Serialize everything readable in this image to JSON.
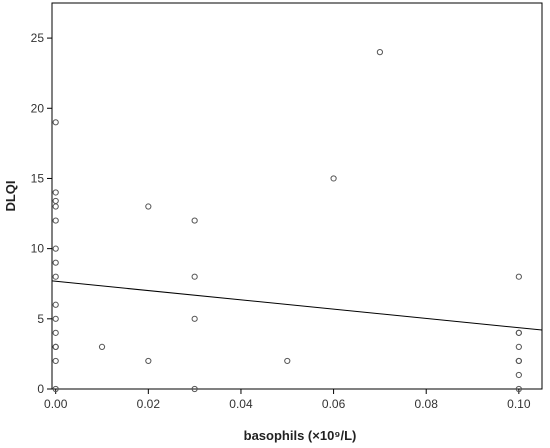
{
  "chart_data": {
    "type": "scatter",
    "title": "",
    "xlabel": "basophils (×10⁹/L)",
    "ylabel": "DLQI",
    "xlim": [
      -0.0008,
      0.105
    ],
    "ylim": [
      0,
      27.5
    ],
    "xticks": [
      0.0,
      0.02,
      0.04,
      0.06,
      0.08,
      0.1
    ],
    "xtick_labels": [
      "0.00",
      "0.02",
      "0.04",
      "0.06",
      "0.08",
      "0.10"
    ],
    "yticks": [
      0,
      5,
      10,
      15,
      20,
      25
    ],
    "ytick_labels": [
      "0",
      "5",
      "10",
      "15",
      "20",
      "25"
    ],
    "grid": false,
    "legend": "none",
    "colors": {
      "marker": "#555555",
      "line": "#000000",
      "frame": "#000000"
    },
    "series": [
      {
        "points": [
          [
            0.0,
            0
          ],
          [
            0.0,
            2
          ],
          [
            0.0,
            3
          ],
          [
            0.0,
            3
          ],
          [
            0.0,
            4
          ],
          [
            0.0,
            5
          ],
          [
            0.0,
            6
          ],
          [
            0.0,
            8
          ],
          [
            0.0,
            9
          ],
          [
            0.0,
            10
          ],
          [
            0.0,
            12
          ],
          [
            0.0,
            13
          ],
          [
            0.0,
            13.4
          ],
          [
            0.0,
            14
          ],
          [
            0.0,
            19
          ],
          [
            0.01,
            3
          ],
          [
            0.02,
            2
          ],
          [
            0.02,
            13
          ],
          [
            0.03,
            0
          ],
          [
            0.03,
            5
          ],
          [
            0.03,
            8
          ],
          [
            0.03,
            12
          ],
          [
            0.05,
            2
          ],
          [
            0.06,
            15
          ],
          [
            0.07,
            24
          ],
          [
            0.1,
            0
          ],
          [
            0.1,
            1
          ],
          [
            0.1,
            2
          ],
          [
            0.1,
            2
          ],
          [
            0.1,
            3
          ],
          [
            0.1,
            4
          ],
          [
            0.1,
            4
          ],
          [
            0.1,
            8
          ]
        ]
      }
    ],
    "fit_line": {
      "x": [
        -0.0008,
        0.105
      ],
      "y": [
        7.7,
        4.2
      ]
    }
  }
}
